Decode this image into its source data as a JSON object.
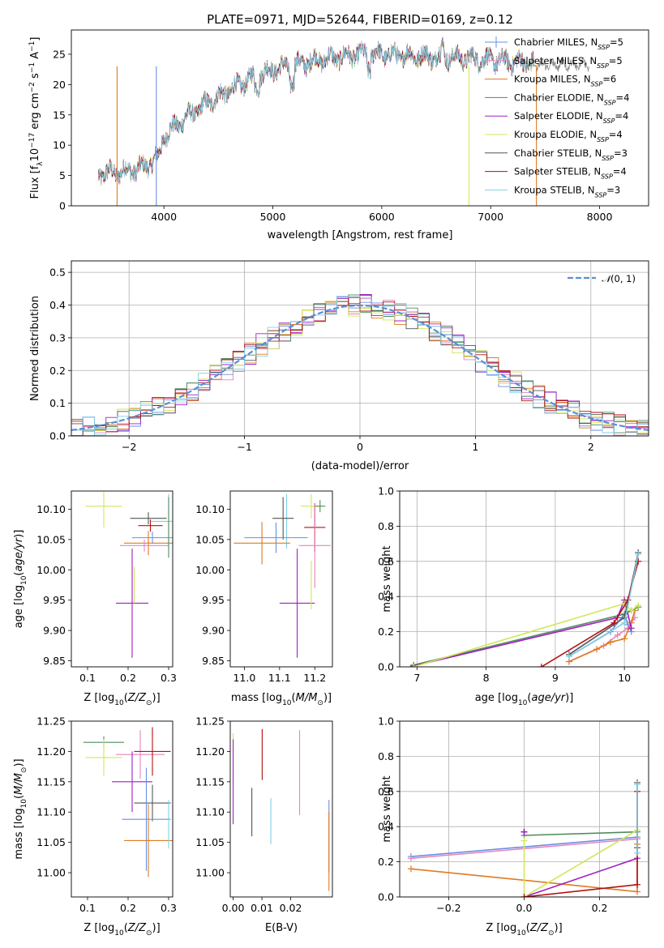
{
  "figure": {
    "title": "PLATE=0971, MJD=52644, FIBERID=0169, z=0.12"
  },
  "colors": {
    "Chabrier MILES": "#6a8fe0",
    "Salpeter MILES": "#e584c0",
    "Kroupa MILES": "#e07a20",
    "Chabrier ELODIE": "#4f8c5f",
    "Salpeter ELODIE": "#a020c0",
    "Kroupa ELODIE": "#d2e65a",
    "Chabrier STELIB": "#555555",
    "Salpeter STELIB": "#b01010",
    "Kroupa STELIB": "#7fd0e8"
  },
  "chart_data": [
    {
      "id": "spectrum",
      "type": "line",
      "title": "PLATE=0971, MJD=52644, FIBERID=0169, z=0.12",
      "xlabel": "wavelength [Angstrom, rest frame]",
      "ylabel": "Flux [f_λ 10^-17 erg cm^-2 s^-1 A^-1]",
      "xlim": [
        3150,
        8450
      ],
      "ylim": [
        0,
        29
      ],
      "xticks": [
        4000,
        5000,
        6000,
        7000,
        8000
      ],
      "yticks": [
        0,
        5,
        10,
        15,
        20,
        25
      ],
      "legend_position": "top-right",
      "legend": [
        "Chabrier MILES, N_SSP=5",
        "Salpeter MILES, N_SSP=5",
        "Kroupa MILES, N_SSP=6",
        "Chabrier ELODIE, N_SSP=4",
        "Salpeter ELODIE, N_SSP=4",
        "Kroupa ELODIE, N_SSP=4",
        "Chabrier STELIB, N_SSP=3",
        "Salpeter STELIB, N_SSP=4",
        "Kroupa STELIB, N_SSP=3"
      ],
      "continuum": {
        "x": [
          3400,
          3600,
          3800,
          3950,
          4000,
          4200,
          4400,
          4600,
          4800,
          5000,
          5200,
          5400,
          5600,
          5800,
          6000,
          6200,
          6400,
          6600,
          6800,
          7000,
          7200,
          7400
        ],
        "y": [
          5.3,
          5.6,
          6.2,
          8.0,
          11.5,
          14.5,
          17.0,
          19.0,
          21.0,
          22.5,
          23.2,
          24.0,
          24.5,
          25.0,
          25.0,
          24.8,
          24.6,
          24.5,
          24.3,
          24.0,
          23.8,
          23.5
        ]
      },
      "grey_extension": {
        "x": [
          7400,
          7900
        ],
        "y_mean": 23.3
      },
      "drops": [
        {
          "series": "Kroupa MILES",
          "x": 3570
        },
        {
          "series": "Chabrier MILES",
          "x": 3930
        },
        {
          "series": "Kroupa ELODIE",
          "x": 6800
        },
        {
          "series": "Kroupa MILES",
          "x": 7420
        }
      ]
    },
    {
      "id": "residuals",
      "type": "line",
      "xlabel": "(data-model)/error",
      "ylabel": "Normed distribution",
      "xlim": [
        -2.5,
        2.5
      ],
      "ylim": [
        0,
        0.535
      ],
      "xticks": [
        -2,
        -1,
        0,
        1,
        2
      ],
      "yticks": [
        0.0,
        0.1,
        0.2,
        0.3,
        0.4,
        0.5
      ],
      "grid": true,
      "legend_position": "top-right",
      "legend": [
        "N(0,1)"
      ],
      "bin_width": 0.1
    },
    {
      "id": "age_vs_Z",
      "type": "scatter",
      "xlabel": "Z [log10(Z/Z⊙)]",
      "ylabel": "age [log10(age/yr)]",
      "xlim": [
        0.06,
        0.31
      ],
      "ylim": [
        9.84,
        10.13
      ],
      "xticks": [
        0.1,
        0.2,
        0.3
      ],
      "yticks": [
        9.85,
        9.9,
        9.95,
        10.0,
        10.05,
        10.1
      ],
      "points": [
        {
          "series": "Kroupa ELODIE",
          "x": 0.14,
          "y": 10.105,
          "xerr": 0.045,
          "yerr": 0.035
        },
        {
          "series": "Chabrier STELIB",
          "x": 0.25,
          "y": 10.085,
          "xerr": 0.045,
          "yerr": 0.01
        },
        {
          "series": "Kroupa STELIB",
          "x": 0.3,
          "y": 10.08,
          "xerr": 0.045,
          "yerr": 0.045
        },
        {
          "series": "Salpeter STELIB",
          "x": 0.255,
          "y": 10.073,
          "xerr": 0.03,
          "yerr": 0.01
        },
        {
          "series": "Chabrier MILES",
          "x": 0.26,
          "y": 10.053,
          "xerr": 0.05,
          "yerr": 0.01
        },
        {
          "series": "Kroupa MILES",
          "x": 0.25,
          "y": 10.044,
          "xerr": 0.06,
          "yerr": 0.02
        },
        {
          "series": "Salpeter MILES",
          "x": 0.24,
          "y": 10.04,
          "xerr": 0.06,
          "yerr": 0.01
        },
        {
          "series": "Salpeter ELODIE",
          "x": 0.21,
          "y": 9.945,
          "xerr": 0.04,
          "yerr": 0.09
        },
        {
          "series": "Kroupa ELODIE",
          "x": 0.215,
          "y": 9.975,
          "xerr": 0.0,
          "yerr": 0.03
        },
        {
          "series": "Chabrier ELODIE",
          "x": 0.3,
          "y": 10.07,
          "xerr": 0.0,
          "yerr": 0.05
        }
      ]
    },
    {
      "id": "age_vs_mass",
      "type": "scatter",
      "xlabel": "mass [log10(M/M⊙)]",
      "ylabel": "",
      "xlim": [
        10.96,
        11.25
      ],
      "ylim": [
        9.84,
        10.13
      ],
      "xticks": [
        11.0,
        11.1,
        11.2
      ],
      "yticks": [
        9.85,
        9.9,
        9.95,
        10.0,
        10.05,
        10.1
      ],
      "points": [
        {
          "series": "Kroupa ELODIE",
          "x": 11.19,
          "y": 10.105,
          "xerr": 0.03,
          "yerr": 0.02
        },
        {
          "series": "Chabrier ELODIE",
          "x": 11.215,
          "y": 10.105,
          "xerr": 0.015,
          "yerr": 0.01
        },
        {
          "series": "Kroupa STELIB",
          "x": 11.12,
          "y": 10.08,
          "xerr": 0.0,
          "yerr": 0.045
        },
        {
          "series": "Chabrier STELIB",
          "x": 11.11,
          "y": 10.085,
          "xerr": 0.03,
          "yerr": 0.035
        },
        {
          "series": "Salpeter STELIB",
          "x": 11.2,
          "y": 10.07,
          "xerr": 0.03,
          "yerr": 0.04
        },
        {
          "series": "Chabrier MILES",
          "x": 11.09,
          "y": 10.053,
          "xerr": 0.09,
          "yerr": 0.025
        },
        {
          "series": "Kroupa MILES",
          "x": 11.05,
          "y": 10.044,
          "xerr": 0.08,
          "yerr": 0.035
        },
        {
          "series": "Salpeter MILES",
          "x": 11.2,
          "y": 10.04,
          "xerr": 0.045,
          "yerr": 0.07
        },
        {
          "series": "Salpeter ELODIE",
          "x": 11.15,
          "y": 9.945,
          "xerr": 0.05,
          "yerr": 0.09
        },
        {
          "series": "Kroupa ELODIE",
          "x": 11.19,
          "y": 9.975,
          "xerr": 0.0,
          "yerr": 0.04
        }
      ]
    },
    {
      "id": "massweight_vs_age",
      "type": "line",
      "xlabel": "age [log10(age/yr)]",
      "ylabel": "mass weight",
      "xlim": [
        6.75,
        10.35
      ],
      "ylim": [
        0,
        1.0
      ],
      "xticks": [
        7,
        8,
        9,
        10
      ],
      "yticks": [
        0.0,
        0.2,
        0.4,
        0.6,
        0.8,
        1.0
      ],
      "grid": true,
      "series": [
        {
          "name": "Chabrier MILES",
          "x": [
            9.2,
            9.8,
            10.0,
            10.05,
            10.1
          ],
          "y": [
            0.06,
            0.2,
            0.3,
            0.24,
            0.2
          ]
        },
        {
          "name": "Salpeter MILES",
          "x": [
            9.2,
            9.7,
            9.9,
            10.05,
            10.15
          ],
          "y": [
            0.03,
            0.12,
            0.18,
            0.22,
            0.28
          ]
        },
        {
          "name": "Kroupa MILES",
          "x": [
            9.2,
            9.6,
            9.8,
            10.0,
            10.1,
            10.15
          ],
          "y": [
            0.03,
            0.1,
            0.14,
            0.16,
            0.25,
            0.32
          ]
        },
        {
          "name": "Chabrier ELODIE",
          "x": [
            6.95,
            10.0,
            10.1,
            10.2
          ],
          "y": [
            0.01,
            0.3,
            0.32,
            0.34
          ]
        },
        {
          "name": "Salpeter ELODIE",
          "x": [
            6.95,
            9.9,
            10.0,
            10.1
          ],
          "y": [
            0.005,
            0.28,
            0.38,
            0.22
          ]
        },
        {
          "name": "Kroupa ELODIE",
          "x": [
            6.95,
            10.0,
            10.1,
            10.2
          ],
          "y": [
            0.0,
            0.36,
            0.32,
            0.35
          ]
        },
        {
          "name": "Chabrier STELIB",
          "x": [
            9.2,
            10.0,
            10.2
          ],
          "y": [
            0.07,
            0.28,
            0.65
          ]
        },
        {
          "name": "Salpeter STELIB",
          "x": [
            8.8,
            9.85,
            10.05,
            10.2
          ],
          "y": [
            0.0,
            0.25,
            0.38,
            0.6
          ]
        },
        {
          "name": "Kroupa STELIB",
          "x": [
            9.2,
            10.0,
            10.2
          ],
          "y": [
            0.06,
            0.25,
            0.64
          ]
        }
      ]
    },
    {
      "id": "mass_vs_Z",
      "type": "scatter",
      "xlabel": "Z [log10(Z/Z⊙)]",
      "ylabel": "mass [log10(M/M⊙)]",
      "xlim": [
        0.06,
        0.31
      ],
      "ylim": [
        10.96,
        11.25
      ],
      "xticks": [
        0.1,
        0.2,
        0.3
      ],
      "yticks": [
        11.0,
        11.05,
        11.1,
        11.15,
        11.2,
        11.25
      ],
      "points": [
        {
          "series": "Chabrier ELODIE",
          "x": 0.14,
          "y": 11.215,
          "xerr": 0.05,
          "yerr": 0.01
        },
        {
          "series": "Kroupa ELODIE",
          "x": 0.14,
          "y": 11.19,
          "xerr": 0.045,
          "yerr": 0.03
        },
        {
          "series": "Salpeter MILES",
          "x": 0.23,
          "y": 11.195,
          "xerr": 0.06,
          "yerr": 0.04
        },
        {
          "series": "Salpeter STELIB",
          "x": 0.26,
          "y": 11.2,
          "xerr": 0.045,
          "yerr": 0.04
        },
        {
          "series": "Salpeter ELODIE",
          "x": 0.21,
          "y": 11.15,
          "xerr": 0.05,
          "yerr": 0.05
        },
        {
          "series": "Chabrier STELIB",
          "x": 0.26,
          "y": 11.115,
          "xerr": 0.045,
          "yerr": 0.03
        },
        {
          "series": "Chabrier MILES",
          "x": 0.245,
          "y": 11.088,
          "xerr": 0.06,
          "yerr": 0.085
        },
        {
          "series": "Kroupa MILES",
          "x": 0.25,
          "y": 11.053,
          "xerr": 0.06,
          "yerr": 0.06
        },
        {
          "series": "Kroupa STELIB",
          "x": 0.3,
          "y": 11.08,
          "xerr": 0.0,
          "yerr": 0.04
        }
      ]
    },
    {
      "id": "mass_vs_ebv",
      "type": "scatter",
      "xlabel": "E(B-V)",
      "ylabel": "",
      "xlim": [
        -0.001,
        0.0345
      ],
      "ylim": [
        10.96,
        11.25
      ],
      "xticks": [
        0.0,
        0.01,
        0.02
      ],
      "yticks": [
        11.0,
        11.05,
        11.1,
        11.15,
        11.2,
        11.25
      ],
      "points": [
        {
          "series": "Kroupa ELODIE",
          "x": 0.0,
          "y": 11.19,
          "xerr": 0.0,
          "yerr": 0.04
        },
        {
          "series": "Salpeter ELODIE",
          "x": 0.0,
          "y": 11.15,
          "xerr": 0.0,
          "yerr": 0.07
        },
        {
          "series": "Chabrier STELIB",
          "x": 0.0065,
          "y": 11.1,
          "xerr": 0.0,
          "yerr": 0.04
        },
        {
          "series": "Salpeter STELIB",
          "x": 0.0101,
          "y": 11.195,
          "xerr": 0.0,
          "yerr": 0.042
        },
        {
          "series": "Kroupa STELIB",
          "x": 0.0131,
          "y": 11.085,
          "xerr": 0.0,
          "yerr": 0.038
        },
        {
          "series": "Salpeter MILES",
          "x": 0.0231,
          "y": 11.165,
          "xerr": 0.0,
          "yerr": 0.07
        },
        {
          "series": "Chabrier MILES",
          "x": 0.0333,
          "y": 11.06,
          "xerr": 0.0,
          "yerr": 0.06
        },
        {
          "series": "Kroupa MILES",
          "x": 0.0333,
          "y": 11.035,
          "xerr": 0.0,
          "yerr": 0.065
        }
      ]
    },
    {
      "id": "massweight_vs_Z",
      "type": "line",
      "xlabel": "Z [log10(Z/Z⊙)]",
      "ylabel": "mass weight",
      "xlim": [
        -0.33,
        0.33
      ],
      "ylim": [
        0,
        1.0
      ],
      "xticks": [
        -0.2,
        0.0,
        0.2
      ],
      "yticks": [
        0.0,
        0.2,
        0.4,
        0.6,
        0.8,
        1.0
      ],
      "grid": true,
      "series": [
        {
          "name": "Chabrier MILES",
          "x": [
            -0.3,
            0.3
          ],
          "y": [
            0.23,
            0.34
          ]
        },
        {
          "name": "Salpeter MILES",
          "x": [
            -0.3,
            0.3
          ],
          "y": [
            0.22,
            0.33
          ]
        },
        {
          "name": "Kroupa MILES",
          "x": [
            -0.3,
            0.3,
            0.3
          ],
          "y": [
            0.16,
            0.03,
            0.3
          ]
        },
        {
          "name": "Chabrier ELODIE",
          "x": [
            0.0,
            0.3
          ],
          "y": [
            0.35,
            0.37
          ]
        },
        {
          "name": "Salpeter ELODIE",
          "x": [
            0.0,
            0.3
          ],
          "y": [
            0.0,
            0.22
          ]
        },
        {
          "name": "Kroupa ELODIE",
          "x": [
            0.0,
            0.0,
            0.3
          ],
          "y": [
            0.32,
            0.0,
            0.38
          ]
        },
        {
          "name": "Chabrier STELIB",
          "x": [
            0.3,
            0.3
          ],
          "y": [
            0.28,
            0.65
          ]
        },
        {
          "name": "Salpeter STELIB",
          "x": [
            0.0,
            0.3,
            0.3
          ],
          "y": [
            0.0,
            0.07,
            0.6
          ]
        },
        {
          "name": "Kroupa STELIB",
          "x": [
            0.3,
            0.3
          ],
          "y": [
            0.25,
            0.64
          ]
        }
      ],
      "markers": [
        {
          "series": "Salpeter ELODIE",
          "x": 0.0,
          "y": 0.37
        }
      ]
    }
  ]
}
